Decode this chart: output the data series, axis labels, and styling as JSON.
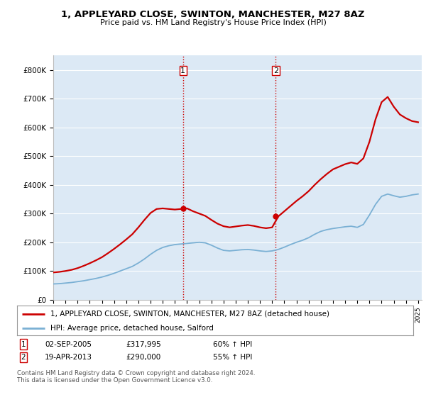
{
  "title": "1, APPLEYARD CLOSE, SWINTON, MANCHESTER, M27 8AZ",
  "subtitle": "Price paid vs. HM Land Registry's House Price Index (HPI)",
  "ylim": [
    0,
    850000
  ],
  "yticks": [
    0,
    100000,
    200000,
    300000,
    400000,
    500000,
    600000,
    700000,
    800000
  ],
  "ytick_labels": [
    "£0",
    "£100K",
    "£200K",
    "£300K",
    "£400K",
    "£500K",
    "£600K",
    "£700K",
    "£800K"
  ],
  "background_color": "#ffffff",
  "plot_bg_color": "#dce9f5",
  "grid_color": "#ffffff",
  "line1_color": "#cc0000",
  "line2_color": "#7ab0d4",
  "vline_color": "#cc0000",
  "sale1": {
    "label": "1",
    "date": "02-SEP-2005",
    "price": "£317,995",
    "hpi": "60% ↑ HPI",
    "year": 2005.67,
    "value": 317995
  },
  "sale2": {
    "label": "2",
    "date": "19-APR-2013",
    "price": "£290,000",
    "hpi": "55% ↑ HPI",
    "year": 2013.3,
    "value": 290000
  },
  "legend_line1": "1, APPLEYARD CLOSE, SWINTON, MANCHESTER, M27 8AZ (detached house)",
  "legend_line2": "HPI: Average price, detached house, Salford",
  "footer": "Contains HM Land Registry data © Crown copyright and database right 2024.\nThis data is licensed under the Open Government Licence v3.0.",
  "xstart": 1995,
  "xend": 2025
}
